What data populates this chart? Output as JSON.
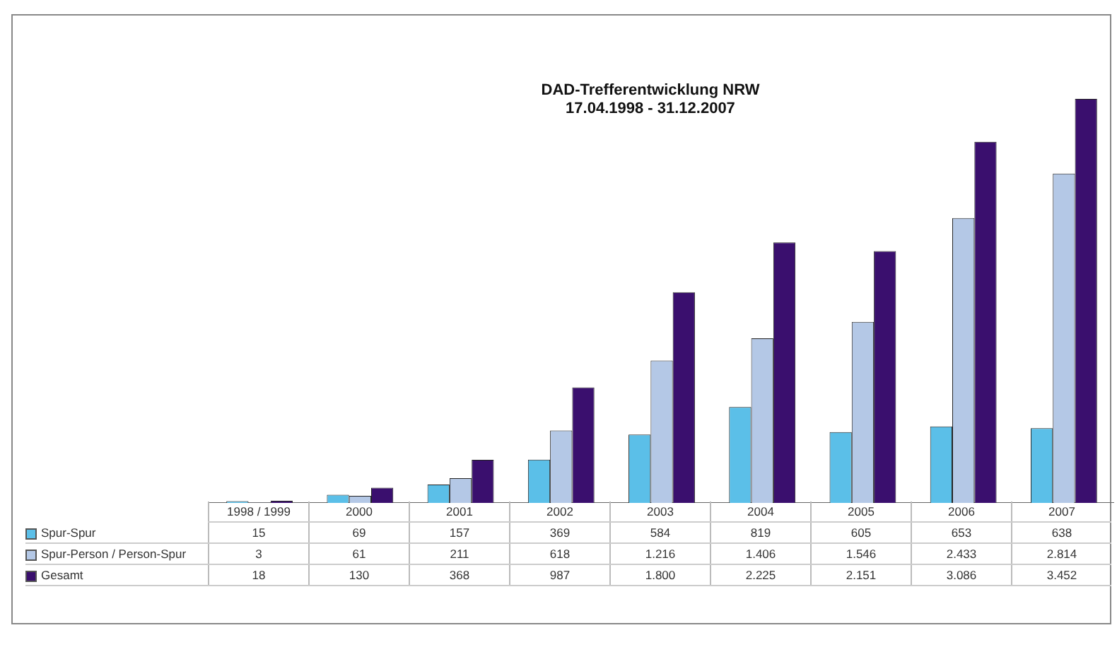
{
  "chart_data": {
    "type": "bar",
    "title": "DAD-Trefferentwicklung NRW\n17.04.1998 - 31.12.2007",
    "categories": [
      "1998 / 1999",
      "2000",
      "2001",
      "2002",
      "2003",
      "2004",
      "2005",
      "2006",
      "2007"
    ],
    "series": [
      {
        "name": "Spur-Spur",
        "color": "#5bbfe8",
        "values": [
          15,
          69,
          157,
          369,
          584,
          819,
          605,
          653,
          638
        ],
        "value_labels": [
          "15",
          "69",
          "157",
          "369",
          "584",
          "819",
          "605",
          "653",
          "638"
        ]
      },
      {
        "name": "Spur-Person / Person-Spur",
        "color": "#b4c8e6",
        "values": [
          3,
          61,
          211,
          618,
          1216,
          1406,
          1546,
          2433,
          2814
        ],
        "value_labels": [
          "3",
          "61",
          "211",
          "618",
          "1.216",
          "1.406",
          "1.546",
          "2.433",
          "2.814"
        ]
      },
      {
        "name": "Gesamt",
        "color": "#3a0f6e",
        "values": [
          18,
          130,
          368,
          987,
          1800,
          2225,
          2151,
          3086,
          3452
        ],
        "value_labels": [
          "18",
          "130",
          "368",
          "987",
          "1.800",
          "2.225",
          "2.151",
          "3.086",
          "3.452"
        ]
      }
    ],
    "legend": "bottom left",
    "grid": false
  }
}
